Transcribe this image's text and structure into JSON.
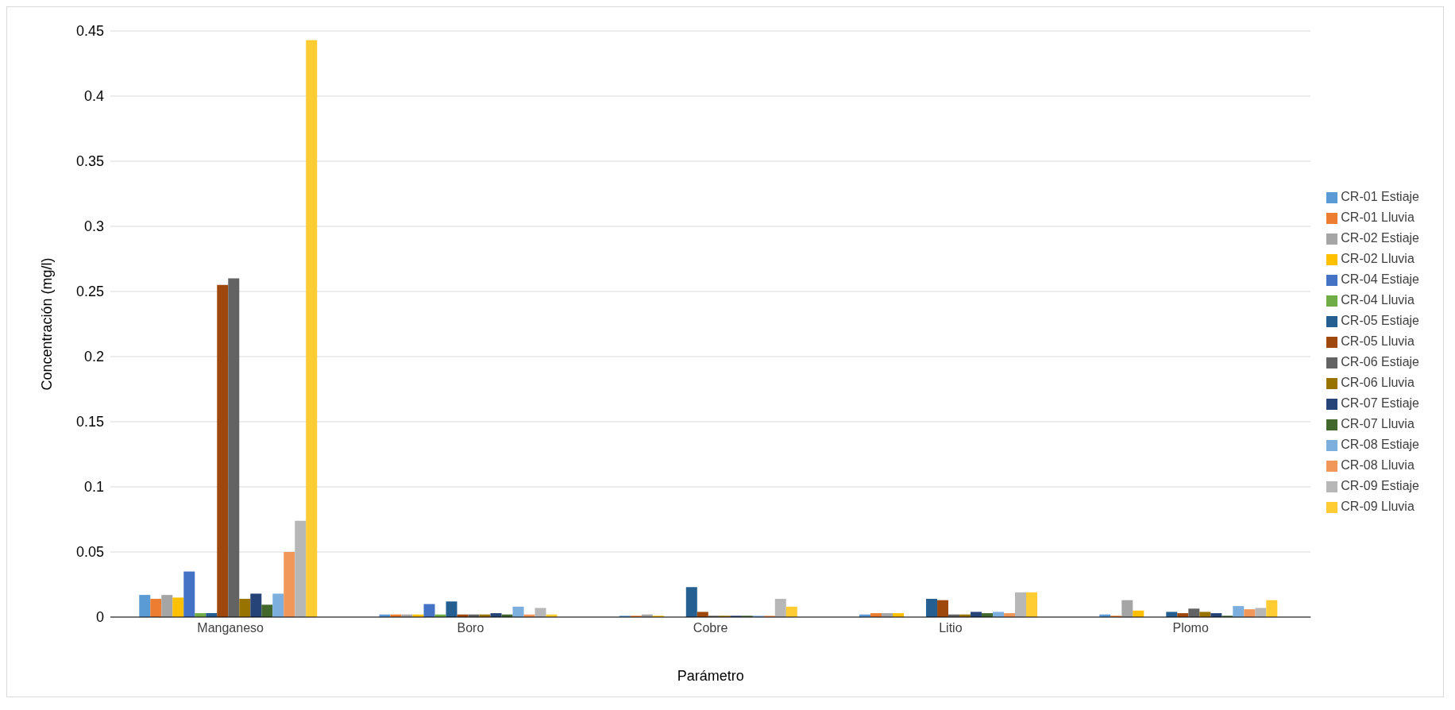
{
  "chart_data": {
    "type": "bar",
    "xlabel": "Parámetro",
    "ylabel": "Concentración (mg/l)",
    "categories": [
      "Manganeso",
      "Boro",
      "Cobre",
      "Litio",
      "Plomo"
    ],
    "series": [
      {
        "name": "CR-01 Estiaje",
        "color": "#5b9bd5",
        "values": [
          0.017,
          0.002,
          0.001,
          0.002,
          0.002
        ]
      },
      {
        "name": "CR-01 Lluvia",
        "color": "#ed7d31",
        "values": [
          0.014,
          0.002,
          0.001,
          0.003,
          0.001
        ]
      },
      {
        "name": "CR-02 Estiaje",
        "color": "#a5a5a5",
        "values": [
          0.017,
          0.002,
          0.002,
          0.003,
          0.013
        ]
      },
      {
        "name": "CR-02 Lluvia",
        "color": "#ffc000",
        "values": [
          0.015,
          0.002,
          0.001,
          0.003,
          0.005
        ]
      },
      {
        "name": "CR-04 Estiaje",
        "color": "#4472c4",
        "values": [
          0.035,
          0.01,
          0,
          0,
          0
        ]
      },
      {
        "name": "CR-04 Lluvia",
        "color": "#70ad47",
        "values": [
          0.003,
          0.002,
          0,
          0,
          0
        ]
      },
      {
        "name": "CR-05 Estiaje",
        "color": "#255e91",
        "values": [
          0.003,
          0.012,
          0.023,
          0.014,
          0.004
        ]
      },
      {
        "name": "CR-05 Lluvia",
        "color": "#9e480e",
        "values": [
          0.255,
          0.002,
          0.004,
          0.013,
          0.003
        ]
      },
      {
        "name": "CR-06 Estiaje",
        "color": "#636363",
        "values": [
          0.26,
          0.002,
          0.001,
          0.002,
          0.0065
        ]
      },
      {
        "name": "CR-06 Lluvia",
        "color": "#997300",
        "values": [
          0.014,
          0.002,
          0.001,
          0.002,
          0.004
        ]
      },
      {
        "name": "CR-07 Estiaje",
        "color": "#264478",
        "values": [
          0.018,
          0.003,
          0.001,
          0.004,
          0.003
        ]
      },
      {
        "name": "CR-07 Lluvia",
        "color": "#43682b",
        "values": [
          0.0095,
          0.002,
          0.001,
          0.003,
          0.001
        ]
      },
      {
        "name": "CR-08 Estiaje",
        "color": "#7cafdd",
        "values": [
          0.018,
          0.008,
          0.001,
          0.004,
          0.0085
        ]
      },
      {
        "name": "CR-08 Lluvia",
        "color": "#f1975a",
        "values": [
          0.05,
          0.002,
          0.001,
          0.003,
          0.006
        ]
      },
      {
        "name": "CR-09 Estiaje",
        "color": "#b7b7b7",
        "values": [
          0.074,
          0.007,
          0.014,
          0.019,
          0.007
        ]
      },
      {
        "name": "CR-09 Lluvia",
        "color": "#ffcd33",
        "values": [
          0.443,
          0.002,
          0.008,
          0.019,
          0.013
        ]
      }
    ],
    "ylim": [
      0,
      0.45
    ],
    "yticks": [
      0,
      0.05,
      0.1,
      0.15,
      0.2,
      0.25,
      0.3,
      0.35,
      0.4,
      0.45
    ],
    "grid": "y",
    "legend": "right"
  }
}
